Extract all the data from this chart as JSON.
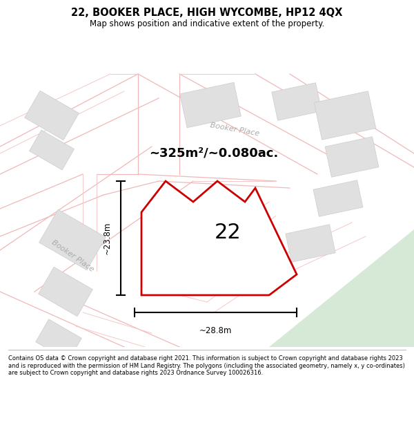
{
  "title": "22, BOOKER PLACE, HIGH WYCOMBE, HP12 4QX",
  "subtitle": "Map shows position and indicative extent of the property.",
  "area_text": "~325m²/~0.080ac.",
  "number_label": "22",
  "dim_width": "~28.8m",
  "dim_height": "~23.8m",
  "footer": "Contains OS data © Crown copyright and database right 2021. This information is subject to Crown copyright and database rights 2023 and is reproduced with the permission of HM Land Registry. The polygons (including the associated geometry, namely x, y co-ordinates) are subject to Crown copyright and database rights 2023 Ordnance Survey 100026316.",
  "bg_color": "#ffffff",
  "road_color": "#f0b8b8",
  "road_color2": "#f5c8c8",
  "building_fill": "#e0e0e0",
  "building_edge": "#cccccc",
  "plot_border": "#cc0000",
  "green_area": "#d6e8d6",
  "street_label_color": "#aaaaaa",
  "black": "#000000"
}
